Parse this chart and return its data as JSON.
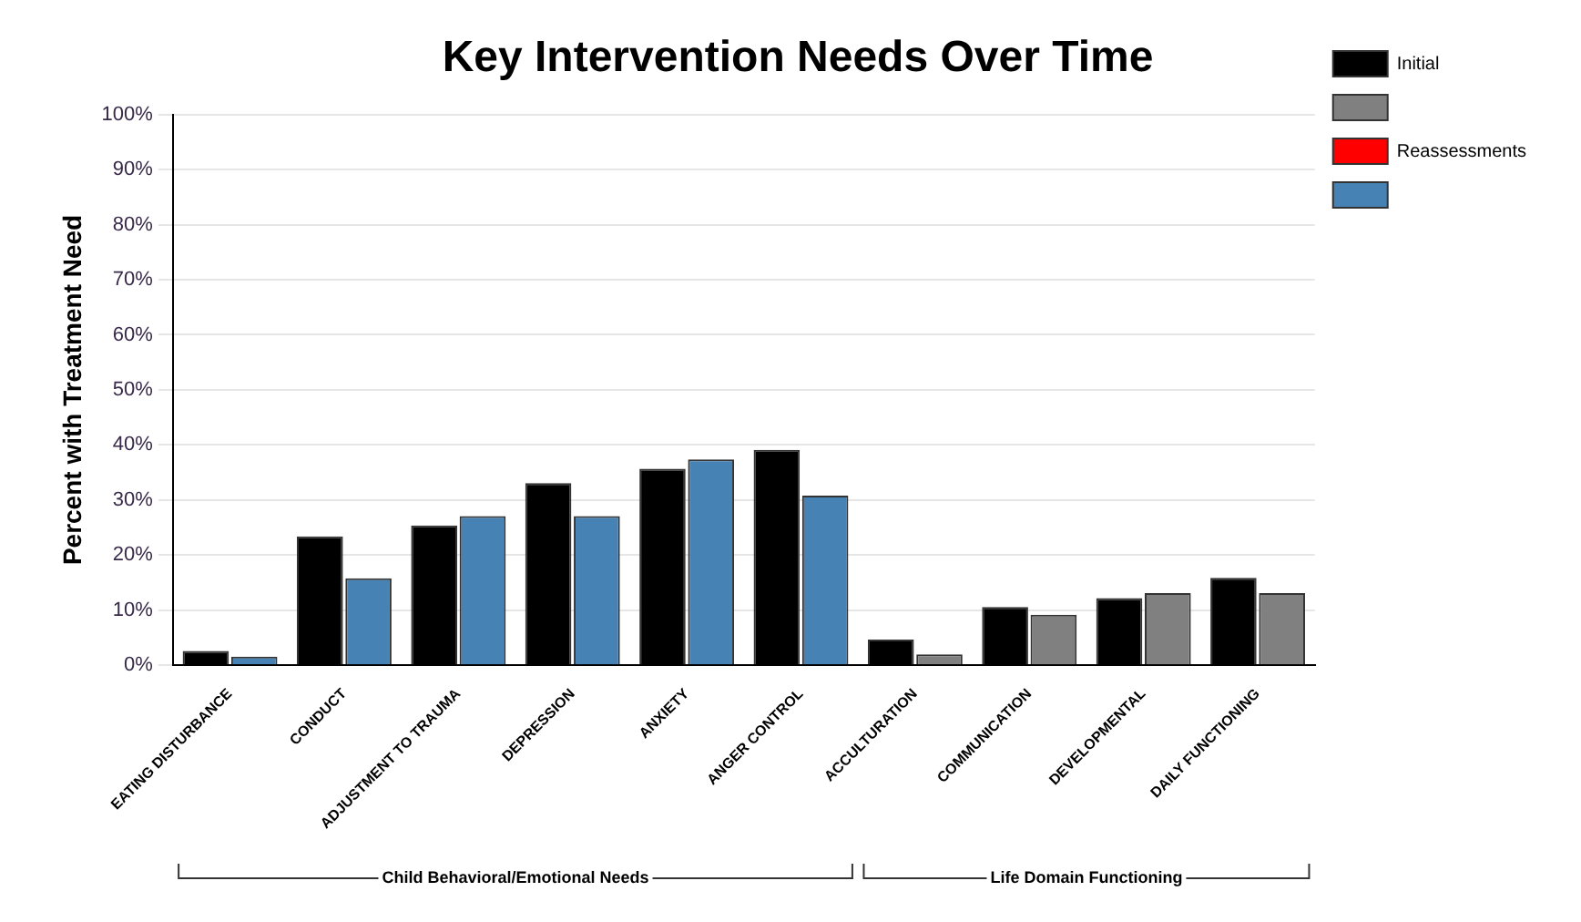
{
  "chart_data": {
    "type": "bar",
    "title": "Key Intervention Needs Over Time",
    "ylabel": "Percent with Treatment Need",
    "categories": [
      "EATING DISTURBANCE",
      "CONDUCT",
      "ADJUSTMENT TO TRAUMA",
      "DEPRESSION",
      "ANXIETY",
      "ANGER CONTROL",
      "ACCULTURATION",
      "COMMUNICATION",
      "DEVELOPMENTAL",
      "DAILY FUNCTIONING"
    ],
    "series": [
      {
        "name": "Initial",
        "color": "#000000",
        "values": [
          2.6,
          23.4,
          25.4,
          33.1,
          35.7,
          39.1,
          4.7,
          10.6,
          12.2,
          15.9
        ]
      },
      {
        "color": "#808080",
        "values": [
          null,
          null,
          null,
          null,
          null,
          null,
          2.0,
          9.2,
          13.1,
          13.1
        ]
      },
      {
        "name": "Reassessments",
        "color": "#ff0000",
        "values": [
          null,
          null,
          null,
          null,
          null,
          null,
          null,
          null,
          null,
          null
        ]
      },
      {
        "color": "#4682b4",
        "values": [
          1.6,
          15.8,
          27.1,
          27.1,
          37.4,
          30.8,
          null,
          null,
          null,
          null
        ]
      }
    ],
    "ylim": [
      0,
      100
    ],
    "yticks": [
      {
        "value": 0,
        "label": "0%"
      },
      {
        "value": 10,
        "label": "10%"
      },
      {
        "value": 20,
        "label": "20%"
      },
      {
        "value": 30,
        "label": "30%"
      },
      {
        "value": 40,
        "label": "40%"
      },
      {
        "value": 50,
        "label": "50%"
      },
      {
        "value": 60,
        "label": "60%"
      },
      {
        "value": 70,
        "label": "70%"
      },
      {
        "value": 80,
        "label": "80%"
      },
      {
        "value": 90,
        "label": "90%"
      },
      {
        "value": 100,
        "label": "100%"
      }
    ],
    "grid": "y",
    "legend": "top right",
    "annotations": [
      "Child Behavioral/Emotional Needs",
      "Life Domain Functioning"
    ]
  }
}
